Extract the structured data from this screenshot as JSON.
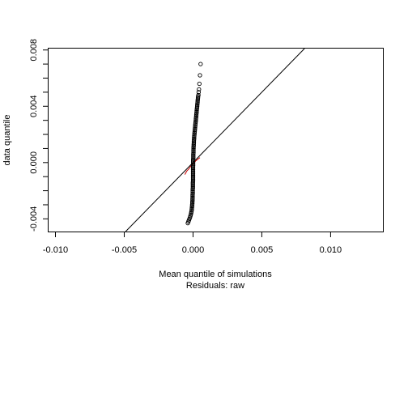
{
  "chart_data": {
    "type": "scatter",
    "title": "",
    "xlabel": "Mean quantile of simulations",
    "xlabel_sub": "Residuals: raw",
    "ylabel": "data quantile",
    "xlim": [
      -0.0105,
      0.0138
    ],
    "ylim": [
      -0.0049,
      0.0081
    ],
    "x_ticks": [
      -0.01,
      -0.005,
      0.0,
      0.005,
      0.01
    ],
    "x_tick_labels": [
      "-0.010",
      "-0.005",
      "0.000",
      "0.005",
      "0.010"
    ],
    "y_ticks": [
      -0.004,
      0.0,
      0.004,
      0.008
    ],
    "y_tick_labels": [
      "-0.004",
      "0.000",
      "0.004",
      "0.008"
    ],
    "grid": false,
    "reference_line": {
      "slope": 1.0,
      "intercept": 0.0,
      "color": "#000000"
    },
    "marker_color": "#000000",
    "envelope_color": "#cc0000",
    "series": [
      {
        "type": "points",
        "points": [
          [
            -0.00038,
            -0.0043
          ],
          [
            -0.00034,
            -0.0042
          ],
          [
            -0.0003,
            -0.0041
          ],
          [
            -0.00026,
            -0.004
          ],
          [
            -0.00022,
            -0.0039
          ],
          [
            -0.00019,
            -0.0038
          ],
          [
            -0.00016,
            -0.0037
          ],
          [
            -0.00014,
            -0.0036
          ],
          [
            -0.00012,
            -0.0035
          ],
          [
            -0.0001,
            -0.0034
          ],
          [
            -9e-05,
            -0.0033
          ],
          [
            -8e-05,
            -0.0032
          ],
          [
            -7e-05,
            -0.0031
          ],
          [
            -6e-05,
            -0.003
          ],
          [
            -5e-05,
            -0.0029
          ],
          [
            -5e-05,
            -0.0028
          ],
          [
            -4e-05,
            -0.0027
          ],
          [
            -4e-05,
            -0.0026
          ],
          [
            -3e-05,
            -0.0025
          ],
          [
            -3e-05,
            -0.0024
          ],
          [
            -3e-05,
            -0.0023
          ],
          [
            -2e-05,
            -0.0022
          ],
          [
            -2e-05,
            -0.0021
          ],
          [
            -2e-05,
            -0.002
          ],
          [
            -2e-05,
            -0.0019
          ],
          [
            -1e-05,
            -0.0018
          ],
          [
            -1e-05,
            -0.0017
          ],
          [
            -1e-05,
            -0.0016
          ],
          [
            -1e-05,
            -0.0015
          ],
          [
            -1e-05,
            -0.0014
          ],
          [
            0.0,
            -0.0013
          ],
          [
            0.0,
            -0.0012
          ],
          [
            0.0,
            -0.0011
          ],
          [
            0.0,
            -0.001
          ],
          [
            0.0,
            -0.0009
          ],
          [
            0.0,
            -0.0008
          ],
          [
            0.0,
            -0.0007
          ],
          [
            0.0,
            -0.0006
          ],
          [
            0.0,
            -0.0005
          ],
          [
            0.0,
            -0.0004
          ],
          [
            0.0,
            -0.0003
          ],
          [
            1e-05,
            -0.0002
          ],
          [
            1e-05,
            -0.0001
          ],
          [
            1e-05,
            0.0
          ],
          [
            1e-05,
            0.0001
          ],
          [
            1e-05,
            0.0002
          ],
          [
            2e-05,
            0.0003
          ],
          [
            2e-05,
            0.0004
          ],
          [
            2e-05,
            0.0005
          ],
          [
            2e-05,
            0.0006
          ],
          [
            3e-05,
            0.0007
          ],
          [
            3e-05,
            0.0008
          ],
          [
            3e-05,
            0.0009
          ],
          [
            4e-05,
            0.001
          ],
          [
            4e-05,
            0.0011
          ],
          [
            5e-05,
            0.0012
          ],
          [
            5e-05,
            0.0013
          ],
          [
            6e-05,
            0.0014
          ],
          [
            6e-05,
            0.0015
          ],
          [
            7e-05,
            0.0016
          ],
          [
            8e-05,
            0.0017
          ],
          [
            8e-05,
            0.0018
          ],
          [
            9e-05,
            0.0019
          ],
          [
            0.0001,
            0.002
          ],
          [
            0.00011,
            0.0021
          ],
          [
            0.00012,
            0.0022
          ],
          [
            0.00013,
            0.0023
          ],
          [
            0.00014,
            0.0024
          ],
          [
            0.00015,
            0.0025
          ],
          [
            0.00016,
            0.0026
          ],
          [
            0.00017,
            0.0027
          ],
          [
            0.00018,
            0.0028
          ],
          [
            0.00019,
            0.0029
          ],
          [
            0.0002,
            0.003
          ],
          [
            0.00021,
            0.0031
          ],
          [
            0.00022,
            0.0032
          ],
          [
            0.00023,
            0.0033
          ],
          [
            0.00024,
            0.0034
          ],
          [
            0.00025,
            0.0035
          ],
          [
            0.00026,
            0.0036
          ],
          [
            0.00027,
            0.0037
          ],
          [
            0.00028,
            0.0038
          ],
          [
            0.00029,
            0.0039
          ],
          [
            0.0003,
            0.004
          ],
          [
            0.00031,
            0.0041
          ],
          [
            0.00032,
            0.0042
          ],
          [
            0.00033,
            0.0043
          ],
          [
            0.00034,
            0.0044
          ],
          [
            0.00035,
            0.0045
          ],
          [
            0.00036,
            0.0046
          ],
          [
            0.00037,
            0.0047
          ],
          [
            0.00039,
            0.0048
          ],
          [
            0.00041,
            0.005
          ],
          [
            0.00043,
            0.0052
          ],
          [
            0.00046,
            0.0056
          ],
          [
            0.0005,
            0.0062
          ],
          [
            0.00055,
            0.007
          ]
        ]
      },
      {
        "type": "envelope",
        "points": [
          [
            -0.0006,
            -0.00085
          ],
          [
            -0.00045,
            -0.0006
          ],
          [
            -0.0003,
            -0.00045
          ],
          [
            -0.0002,
            -0.0003
          ],
          [
            -0.0001,
            -0.00018
          ],
          [
            0.0,
            -8e-05
          ],
          [
            0.0001,
            2e-05
          ],
          [
            0.0002,
            0.00012
          ],
          [
            0.00032,
            0.00022
          ],
          [
            0.0005,
            0.00035
          ]
        ]
      }
    ]
  }
}
